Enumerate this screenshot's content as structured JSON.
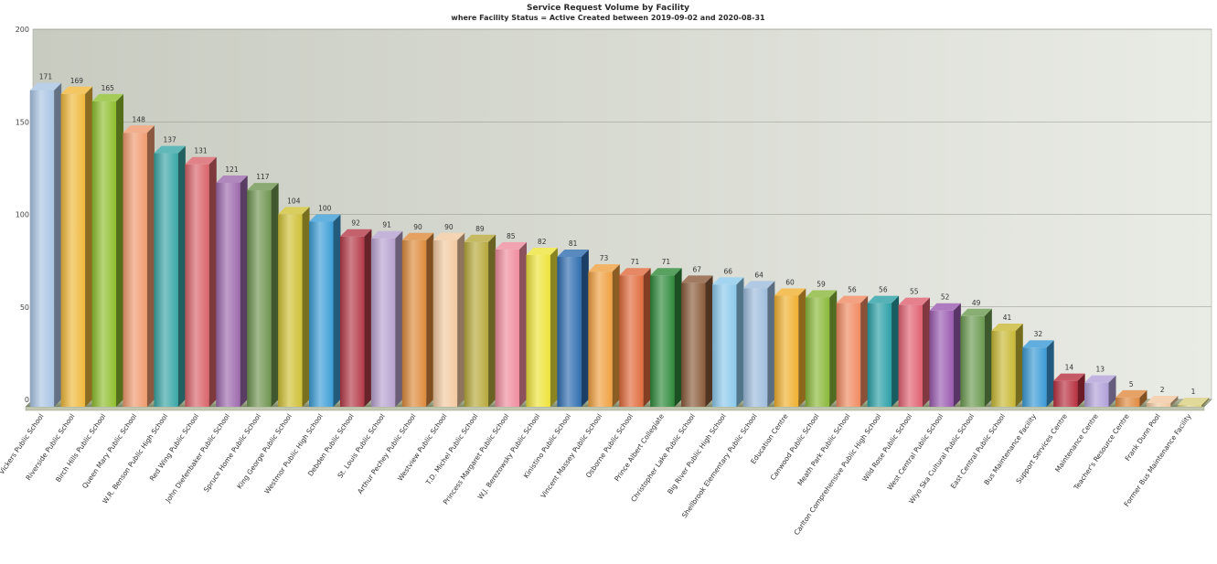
{
  "chart_data": {
    "type": "bar",
    "title": "Service Request Volume by Facility",
    "subtitle": "where Facility Status = Active Created between 2019-09-02 and 2020-08-31",
    "ylim": [
      0,
      200
    ],
    "yticks": [
      0,
      50,
      100,
      150,
      200
    ],
    "grid": true,
    "categories": [
      "Vickers Public School",
      "Riverside Public School",
      "Birch Hills Public School",
      "Queen Mary Public School",
      "W.R. Benson Public High School",
      "Red Wing Public School",
      "John Diefenbaker Public School",
      "Spruce Home Public School",
      "King George Public School",
      "Westmor Public High School",
      "Debden Public School",
      "St. Louis Public School",
      "Arthur Pechey Public School",
      "Westview Public School",
      "T.D. Michel Public School",
      "Princess Margaret Public School",
      "W.J. Berezowsky Public School",
      "Kinistino Public School",
      "Vincent Massey Public School",
      "Osborne Public School",
      "Prince Albert Collegiate",
      "Christopher Lake Public School",
      "Big River Public High School",
      "Shellbrook Elementary Public School",
      "Education Centre",
      "Canwood Public School",
      "Meath Park Public School",
      "Carlton Comprehensive Public High School",
      "Wild Rose Public School",
      "West Central Public School",
      "Wiyo Ska Cultural Public School",
      "East Central Public School",
      "Bus Maintenance Facility",
      "Support Services Centre",
      "Maintenance Centre",
      "Teacher's Resource Centre",
      "Frank Dunn Pool",
      "Former Bus Maintenance Facility"
    ],
    "values": [
      171,
      169,
      165,
      148,
      137,
      131,
      121,
      117,
      104,
      100,
      92,
      91,
      90,
      90,
      89,
      85,
      82,
      81,
      73,
      71,
      71,
      67,
      66,
      64,
      60,
      59,
      56,
      56,
      55,
      52,
      49,
      41,
      32,
      14,
      13,
      5,
      2,
      1
    ],
    "colors": [
      "#a9c4e4",
      "#f0b83a",
      "#8fbf2e",
      "#ef9a6e",
      "#3aa6a6",
      "#d9636a",
      "#9c6aad",
      "#6e9450",
      "#cfc036",
      "#3c9dd6",
      "#b43a48",
      "#b7a1cf",
      "#dd8a3a",
      "#f3c9a0",
      "#b7a93a",
      "#ef8c9e",
      "#eee33a",
      "#2e6db0",
      "#f0a040",
      "#e06a3c",
      "#2e8a3a",
      "#8a5a3a",
      "#8cc9ec",
      "#9dbcdc",
      "#f0b030",
      "#8ab83a",
      "#f08a60",
      "#2aa0a6",
      "#e06070",
      "#9a5ab0",
      "#6a9a50",
      "#c8b834",
      "#3a9ad6",
      "#b83040",
      "#b0a0d8",
      "#e08a40",
      "#f0c8a0",
      "#d8d080"
    ]
  }
}
